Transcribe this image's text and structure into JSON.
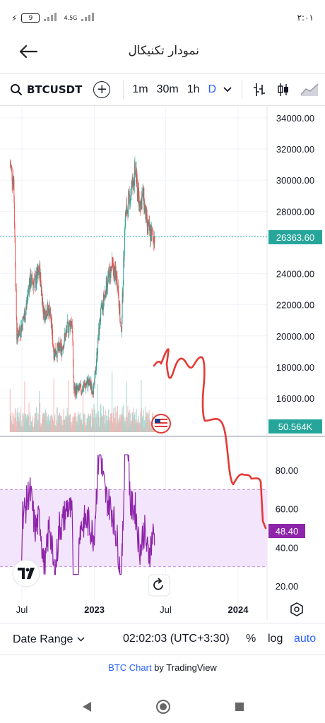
{
  "status_bar": {
    "time": "۲:۰۱",
    "battery": "9",
    "network": "4.5G"
  },
  "app_bar": {
    "title": "نمودار تکنیکال",
    "back_icon": "arrow-left-icon"
  },
  "toolbar": {
    "symbol": "BTCUSDT",
    "intervals": [
      "1m",
      "30m",
      "1h",
      "D"
    ],
    "active_interval": "D",
    "icons": [
      "search-icon",
      "plus-circle-icon",
      "chevron-down-icon",
      "bar-chart-icon",
      "candlestick-icon",
      "area-chart-icon"
    ]
  },
  "price_axis": {
    "labels": [
      "34000.00",
      "32000.00",
      "30000.00",
      "28000.00",
      "26363.60",
      "24000.00",
      "22000.00",
      "20000.00",
      "18000.00",
      "16000.00",
      "50.564K"
    ],
    "current_price": "26363.60",
    "volume_value": "50.564K"
  },
  "rsi_axis": {
    "labels": [
      "80.00",
      "60.00",
      "48.40",
      "40.00",
      "20.00"
    ],
    "current_value": "48.40"
  },
  "time_axis": {
    "labels": [
      "Jul",
      "2023",
      "Jul",
      "2024"
    ]
  },
  "bottom_bar": {
    "date_range": "Date Range",
    "clock": "02:02:03 (UTC+3:30)",
    "percent": "%",
    "log": "log",
    "auto": "auto"
  },
  "attribution": {
    "link_text": "BTC Chart",
    "suffix": " by TradingView"
  },
  "chart_data": {
    "type": "candlestick",
    "symbol": "BTCUSDT",
    "interval": "D",
    "ylim": [
      15000,
      34500
    ],
    "last_price": 26363.6,
    "approx_close_path": [
      [
        "2022-06-01",
        31000
      ],
      [
        "2022-06-10",
        30000
      ],
      [
        "2022-06-18",
        20000
      ],
      [
        "2022-06-28",
        20500
      ],
      [
        "2022-07-10",
        21500
      ],
      [
        "2022-07-20",
        23500
      ],
      [
        "2022-08-05",
        23500
      ],
      [
        "2022-08-15",
        24200
      ],
      [
        "2022-08-25",
        21500
      ],
      [
        "2022-09-10",
        21700
      ],
      [
        "2022-09-20",
        19000
      ],
      [
        "2022-10-10",
        19200
      ],
      [
        "2022-10-25",
        20500
      ],
      [
        "2022-11-05",
        21000
      ],
      [
        "2022-11-10",
        16500
      ],
      [
        "2022-11-25",
        16500
      ],
      [
        "2022-12-15",
        17000
      ],
      [
        "2022-12-31",
        16600
      ],
      [
        "2023-01-15",
        21000
      ],
      [
        "2023-01-31",
        23200
      ],
      [
        "2023-02-15",
        24500
      ],
      [
        "2023-03-01",
        23500
      ],
      [
        "2023-03-10",
        20000
      ],
      [
        "2023-03-20",
        27500
      ],
      [
        "2023-04-10",
        30000
      ],
      [
        "2023-04-15",
        30500
      ],
      [
        "2023-04-25",
        28500
      ],
      [
        "2023-05-05",
        29000
      ],
      [
        "2023-05-15",
        27000
      ],
      [
        "2023-05-25",
        26500
      ],
      [
        "2023-06-03",
        26363.6
      ]
    ],
    "rsi": {
      "value": 48.4,
      "bands": [
        30,
        70
      ],
      "ylim": [
        15,
        92
      ]
    }
  }
}
